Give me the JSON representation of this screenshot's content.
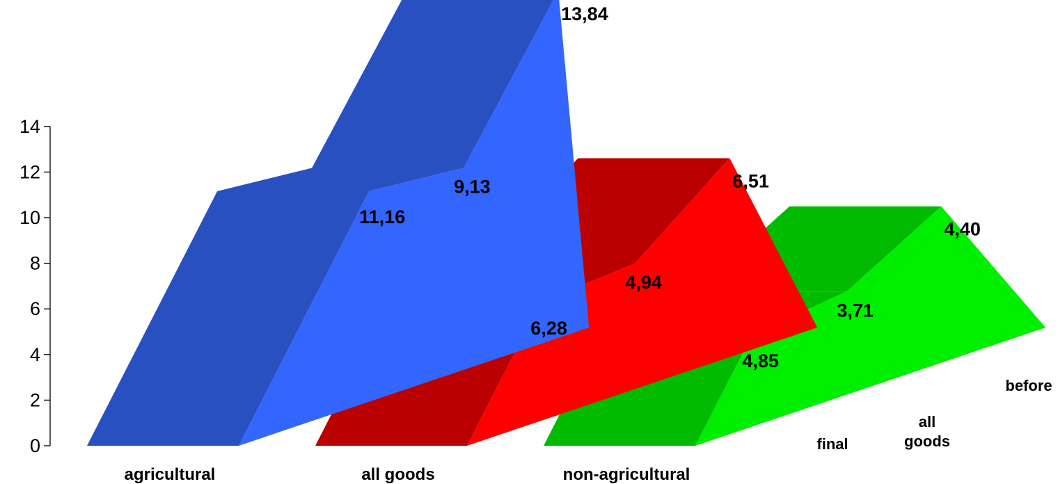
{
  "chart_data": {
    "type": "bar",
    "style": "3d-oblique",
    "categories": [
      "agricultural",
      "all goods",
      "non-agricultural"
    ],
    "series": [
      {
        "name": "final",
        "values": [
          11.16,
          6.28,
          4.85
        ]
      },
      {
        "name": "all goods",
        "values": [
          9.13,
          4.94,
          3.71
        ]
      },
      {
        "name": "before",
        "values": [
          13.84,
          6.51,
          4.4
        ]
      }
    ],
    "value_labels": [
      [
        "11,16",
        "9,13",
        "13,84"
      ],
      [
        "6,28",
        "4,94",
        "6,51"
      ],
      [
        "4,85",
        "3,71",
        "4,40"
      ]
    ],
    "y_ticks": [
      "0",
      "2",
      "4",
      "6",
      "8",
      "10",
      "12",
      "14"
    ],
    "ylim": [
      0,
      14
    ],
    "title": "",
    "xlabel": "",
    "ylabel": "",
    "grid": false,
    "legend": "none",
    "colors": {
      "agricultural": {
        "front": "#2850C0",
        "top": "#2850C0",
        "side": "#3366FF"
      },
      "all goods": {
        "front": "#BB0000",
        "top": "#BB0000",
        "side": "#FF0000"
      },
      "non-agricultural": {
        "front": "#00BB00",
        "top": "#00BB00",
        "side": "#00EE00"
      }
    }
  }
}
